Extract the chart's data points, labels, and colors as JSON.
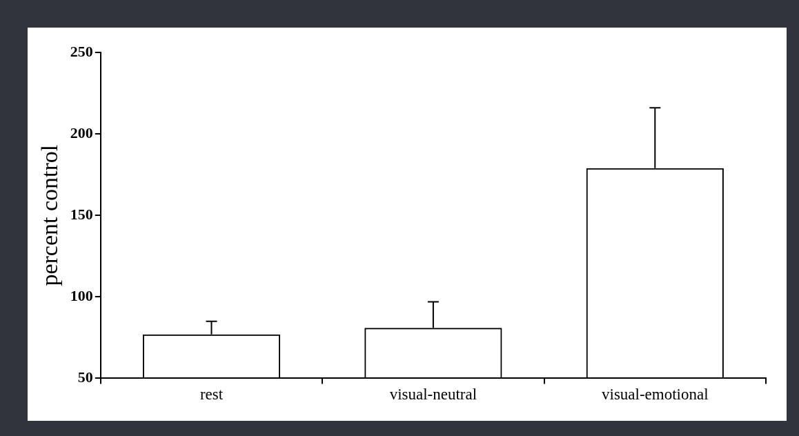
{
  "chart_data": {
    "type": "bar",
    "ylabel": "percent control",
    "categories": [
      "rest",
      "visual-neutral",
      "visual-emotional"
    ],
    "values": [
      77,
      81,
      179
    ],
    "errors": [
      [
        77,
        85
      ],
      [
        81,
        97
      ],
      [
        179,
        216
      ]
    ],
    "color": "#000000",
    "ylim": [
      50,
      250
    ],
    "yticks": [
      50,
      100,
      150,
      200,
      250
    ],
    "grid": false,
    "legend": false
  }
}
